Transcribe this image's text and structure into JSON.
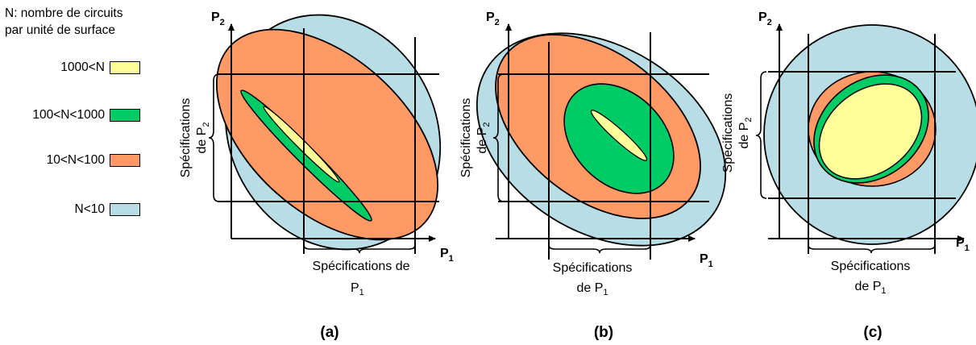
{
  "legend": {
    "title_line1": "N: nombre de circuits",
    "title_line2": "par unité de surface",
    "items": [
      {
        "label": "1000<N",
        "color": "#ffff99"
      },
      {
        "label": "100<N<1000",
        "color": "#00cc66"
      },
      {
        "label": "10<N<100",
        "color": "#ff9966"
      },
      {
        "label": "N<10",
        "color": "#b9dde4"
      }
    ]
  },
  "axes": {
    "p": "P",
    "sub1": "1",
    "sub2": "2",
    "spec_prefix": "Spécifications",
    "spec_de": "de"
  },
  "panels": [
    {
      "caption": "(a)"
    },
    {
      "caption": "(b)"
    },
    {
      "caption": "(c)"
    }
  ]
}
